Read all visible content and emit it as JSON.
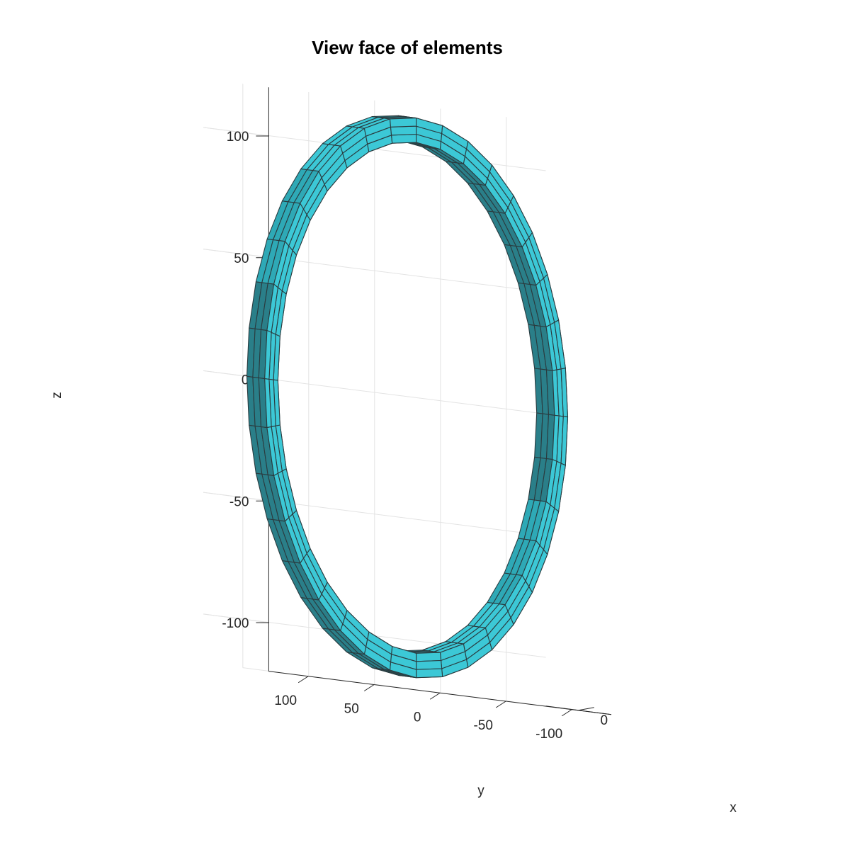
{
  "chart_data": {
    "type": "surface3d",
    "title": "View face of elements",
    "xlabel": "x",
    "ylabel": "y",
    "zlabel": "z",
    "x_ticks": [
      "0"
    ],
    "y_ticks": [
      "100",
      "50",
      "0",
      "-50",
      "-100"
    ],
    "z_ticks": [
      "100",
      "50",
      "0",
      "-50",
      "-100"
    ],
    "ylim": [
      -130,
      130
    ],
    "zlim": [
      -120,
      120
    ],
    "grid": true,
    "colors": {
      "face_light": "#3cc8d6",
      "face_mid": "#2ea9b6",
      "face_dark": "#2a7f89",
      "edge": "#2a3b3f"
    },
    "ring": {
      "center_y": 0,
      "center_z": 0,
      "mean_radius": 110,
      "radial_thickness": 10,
      "width_along_x": 6,
      "segments": 36,
      "radial_layers": 3
    }
  }
}
